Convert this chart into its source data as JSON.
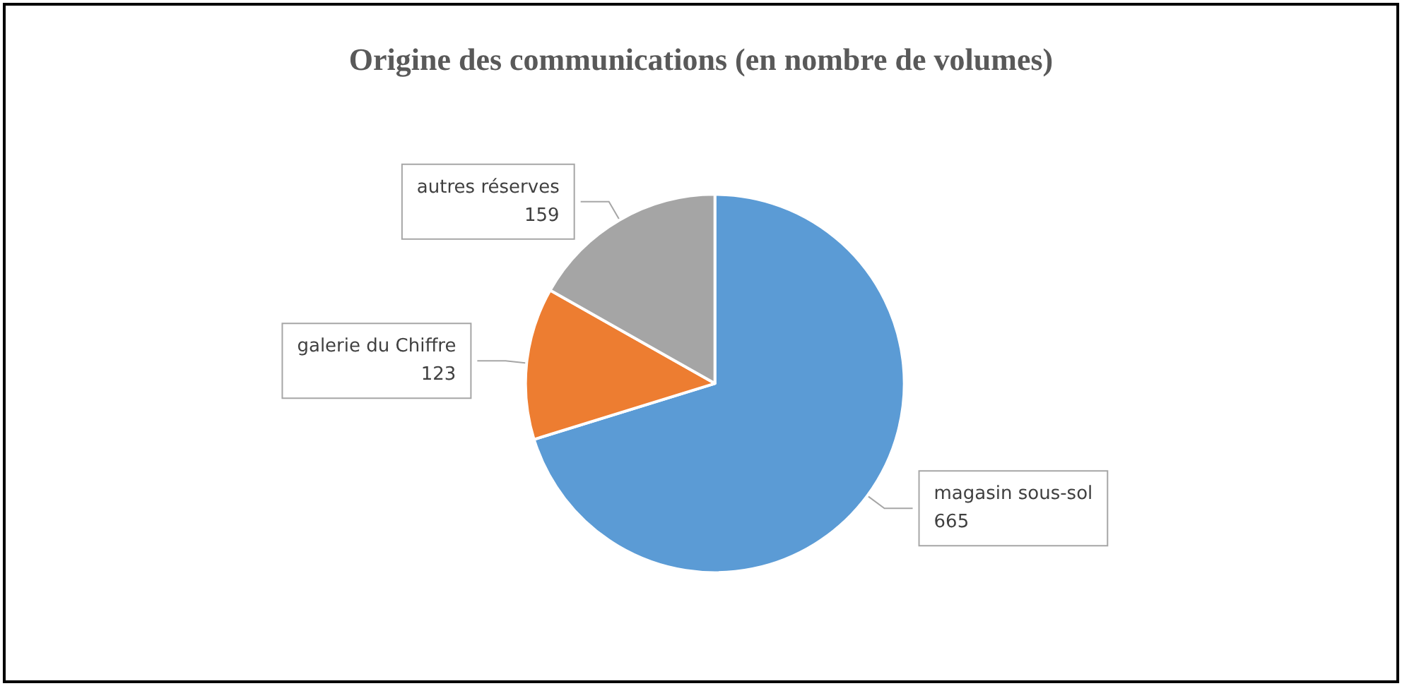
{
  "chart_data": {
    "type": "pie",
    "title": "Origine des communications (en nombre de volumes)",
    "categories": [
      "magasin sous-sol",
      "galerie du Chiffre",
      "autres réserves"
    ],
    "values": [
      665,
      123,
      159
    ],
    "colors": [
      "#5b9bd5",
      "#ed7d31",
      "#a5a5a5"
    ],
    "data_labels": true,
    "legend": false
  }
}
